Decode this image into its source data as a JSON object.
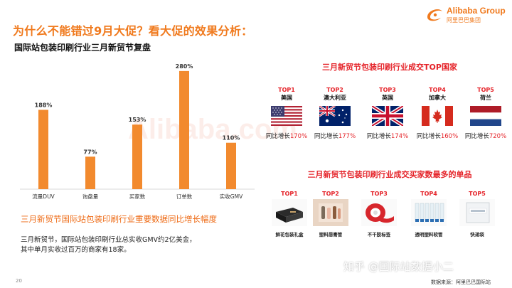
{
  "header": {
    "main_title": "为什么不能错过9月大促？看大促的效果分析：",
    "logo_text": "Alibaba Group",
    "logo_subtext": "阿里巴巴集团"
  },
  "left": {
    "subtitle": "国际站包装印刷行业三月新贸节复盘",
    "caption": "三月新贸节国际站包装印刷行业重要数据同比增长幅度",
    "note_line1": "三月新贸节，国际站包装印刷行业总实收GMV约2亿美金，",
    "note_line2": "其中单月实收过百万的商家有18家。"
  },
  "chart_data": {
    "type": "bar",
    "categories": [
      "流量DUV",
      "询盘量",
      "买家数",
      "订单数",
      "实收GMV"
    ],
    "values": [
      188,
      77,
      153,
      280,
      110
    ],
    "value_labels": [
      "188%",
      "77%",
      "153%",
      "280%",
      "110%"
    ],
    "ylim": [
      0,
      300
    ],
    "grid": false,
    "bar_color": "#f28a2e"
  },
  "countries": {
    "title": "三月新贸节包装印刷行业成交TOP国家",
    "growth_prefix": "同比增长",
    "items": [
      {
        "rank": "TOP1",
        "name": "美国",
        "pct": "170%",
        "flag": "us-flag-icon"
      },
      {
        "rank": "TOP2",
        "name": "澳大利亚",
        "pct": "177%",
        "flag": "australia-flag-icon"
      },
      {
        "rank": "TOP3",
        "name": "英国",
        "pct": "174%",
        "flag": "uk-flag-icon"
      },
      {
        "rank": "TOP4",
        "name": "加拿大",
        "pct": "160%",
        "flag": "canada-flag-icon"
      },
      {
        "rank": "TOP5",
        "name": "荷兰",
        "pct": "720%",
        "flag": "netherlands-flag-icon"
      }
    ]
  },
  "products": {
    "title": "三月新贸节包装印刷行业成交买家数最多的单品",
    "items": [
      {
        "rank": "TOP1",
        "name": "鲜花包装礼盒",
        "icon": "gift-box-icon"
      },
      {
        "rank": "TOP2",
        "name": "塑料唇膏管",
        "icon": "lipstick-tube-icon"
      },
      {
        "rank": "TOP3",
        "name": "不干胶标签",
        "icon": "label-roll-icon"
      },
      {
        "rank": "TOP4",
        "name": "透明塑料软管",
        "icon": "plastic-tube-icon"
      },
      {
        "rank": "TOP5",
        "name": "快递袋",
        "icon": "courier-bag-icon"
      }
    ]
  },
  "footer": {
    "page_number": "20",
    "watermark": "知乎 @国际站数据小二",
    "source": "数据来源：阿里巴巴国际站"
  },
  "colors": {
    "accent_orange": "#f07a1e",
    "accent_red": "#e5242a"
  }
}
